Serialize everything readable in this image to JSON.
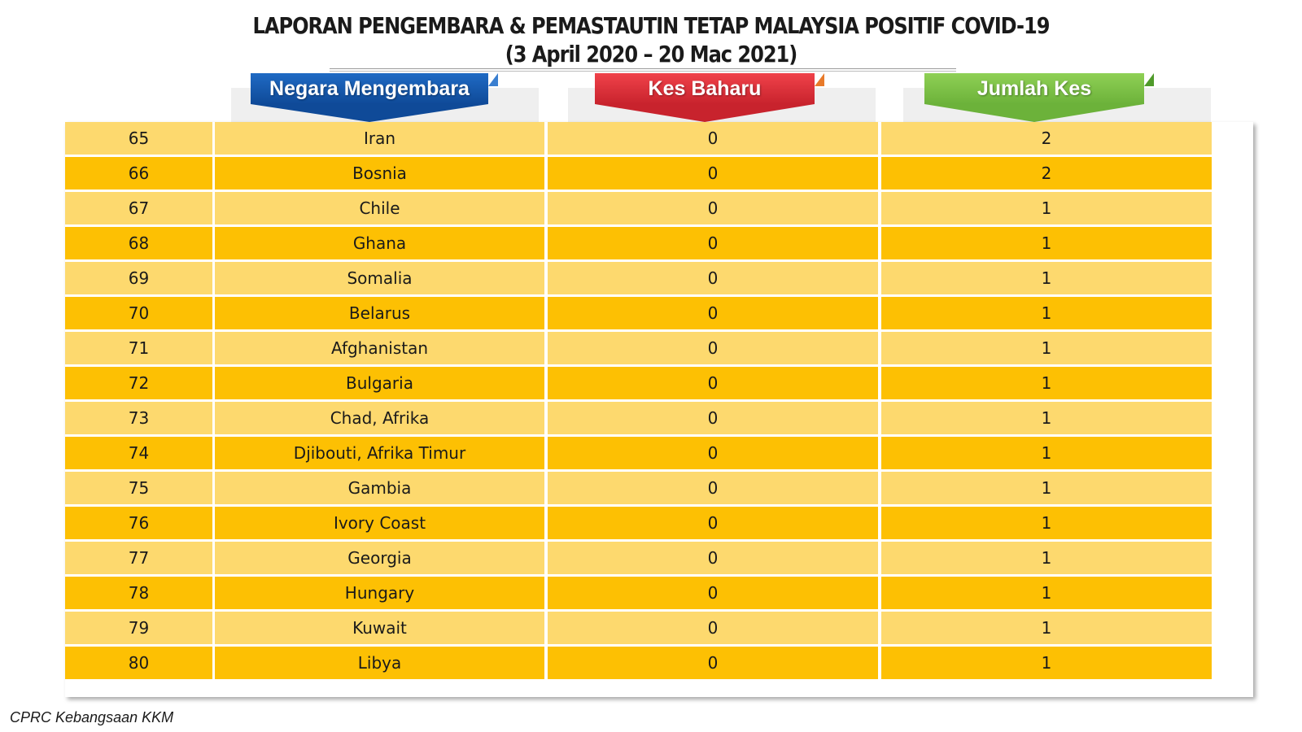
{
  "title": {
    "line1": "LAPORAN PENGEMBARA & PEMASTAUTIN TETAP MALAYSIA POSITIF COVID-19",
    "line2": "(3 April 2020 – 20 Mac 2021)"
  },
  "headers": {
    "country": "Negara Mengembara",
    "new_cases": "Kes Baharu",
    "total_cases": "Jumlah Kes"
  },
  "colors": {
    "header_blue": "#1f5fb0",
    "header_red": "#e0323c",
    "header_green": "#7fc244",
    "row_light": "#fdd96e",
    "row_dark": "#fdc003"
  },
  "rows": [
    {
      "no": "65",
      "country": "Iran",
      "new": "0",
      "total": "2"
    },
    {
      "no": "66",
      "country": "Bosnia",
      "new": "0",
      "total": "2"
    },
    {
      "no": "67",
      "country": "Chile",
      "new": "0",
      "total": "1"
    },
    {
      "no": "68",
      "country": "Ghana",
      "new": "0",
      "total": "1"
    },
    {
      "no": "69",
      "country": "Somalia",
      "new": "0",
      "total": "1"
    },
    {
      "no": "70",
      "country": "Belarus",
      "new": "0",
      "total": "1"
    },
    {
      "no": "71",
      "country": "Afghanistan",
      "new": "0",
      "total": "1"
    },
    {
      "no": "72",
      "country": "Bulgaria",
      "new": "0",
      "total": "1"
    },
    {
      "no": "73",
      "country": "Chad, Afrika",
      "new": "0",
      "total": "1"
    },
    {
      "no": "74",
      "country": "Djibouti, Afrika Timur",
      "new": "0",
      "total": "1"
    },
    {
      "no": "75",
      "country": "Gambia",
      "new": "0",
      "total": "1"
    },
    {
      "no": "76",
      "country": "Ivory Coast",
      "new": "0",
      "total": "1"
    },
    {
      "no": "77",
      "country": "Georgia",
      "new": "0",
      "total": "1"
    },
    {
      "no": "78",
      "country": "Hungary",
      "new": "0",
      "total": "1"
    },
    {
      "no": "79",
      "country": "Kuwait",
      "new": "0",
      "total": "1"
    },
    {
      "no": "80",
      "country": "Libya",
      "new": "0",
      "total": "1"
    }
  ],
  "footer": "CPRC Kebangsaan KKM"
}
